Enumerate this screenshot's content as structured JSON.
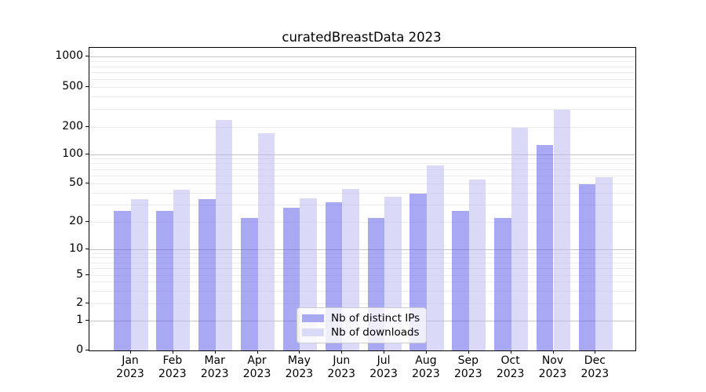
{
  "title": "curatedBreastData 2023",
  "chart_data": {
    "type": "bar",
    "categories": [
      "Jan 2023",
      "Feb 2023",
      "Mar 2023",
      "Apr 2023",
      "May 2023",
      "Jun 2023",
      "Jul 2023",
      "Aug 2023",
      "Sep 2023",
      "Oct 2023",
      "Nov 2023",
      "Dec 2023"
    ],
    "series": [
      {
        "name": "Nb of distinct IPs",
        "color": "#a8a8f3",
        "fill": "rgba(81,81,231,0.5)",
        "values": [
          26,
          26,
          34,
          22,
          28,
          32,
          22,
          39,
          26,
          22,
          127,
          49
        ]
      },
      {
        "name": "Nb of downloads",
        "color": "#dadaf8",
        "fill": "rgba(181,181,241,0.5)",
        "values": [
          34,
          43,
          235,
          172,
          35,
          44,
          36,
          76,
          55,
          198,
          295,
          58
        ]
      }
    ],
    "xlabel": "",
    "ylabel": "",
    "yticks": [
      0,
      1,
      2,
      5,
      10,
      20,
      50,
      100,
      200,
      500,
      1000
    ],
    "yscale": "log-like with 0 baseline (symlog)",
    "ylim": [
      0,
      1200
    ],
    "grid": "horizontal; darker lines at 1,10,100,1000; faint minor lines at 2-9 of each decade",
    "legend_position": "lower center"
  },
  "colors": {
    "background": "#ffffff",
    "spine": "#000000",
    "text": "#000000",
    "major_grid": "#c6c6c6",
    "minor_grid": "#ececec"
  }
}
